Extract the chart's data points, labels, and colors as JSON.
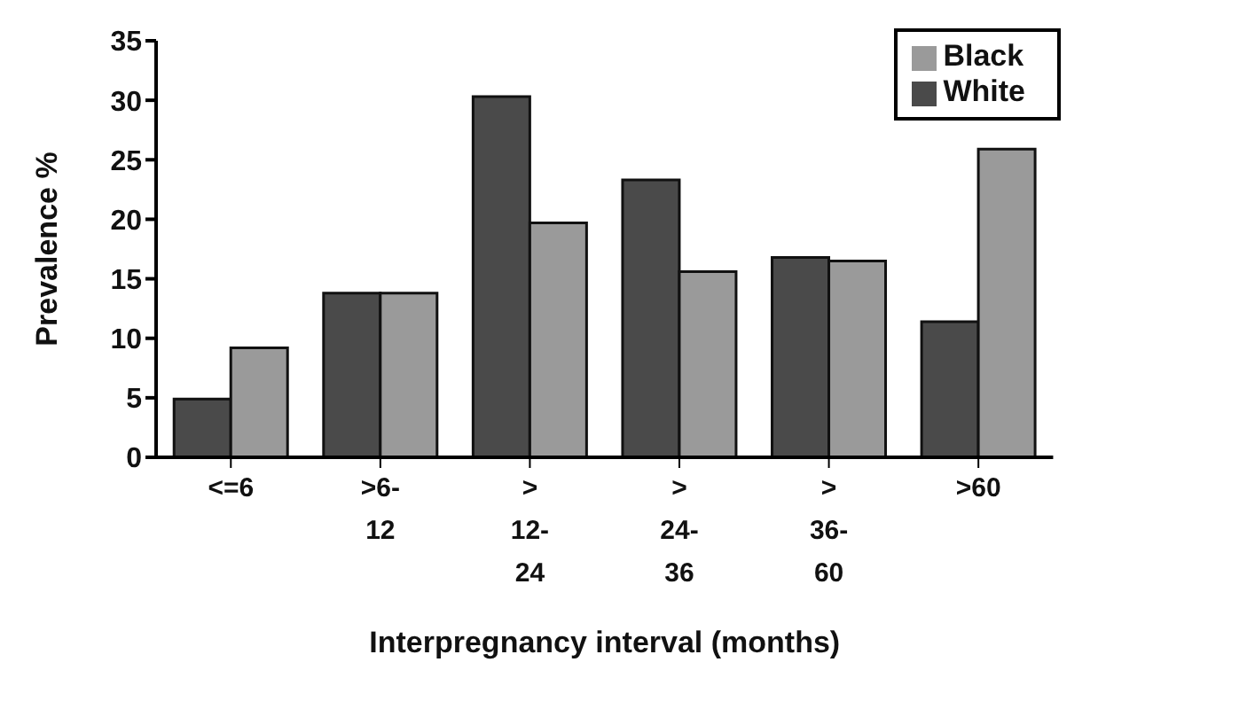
{
  "chart_data": {
    "type": "bar",
    "xlabel": "Interpregnancy interval (months)",
    "ylabel": "Prevalence %",
    "categories": [
      "<=6",
      ">6-\n12",
      ">\n12-\n24",
      ">\n24-\n36",
      ">\n36-\n60",
      ">60"
    ],
    "series": [
      {
        "name": "White",
        "color": "#4a4a4a",
        "values": [
          4.9,
          13.8,
          30.3,
          23.3,
          16.8,
          11.4
        ]
      },
      {
        "name": "Black",
        "color": "#9a9a9a",
        "values": [
          9.2,
          13.8,
          19.7,
          15.6,
          16.5,
          25.9
        ]
      }
    ],
    "ylim": [
      0,
      35
    ],
    "yticks": [
      0,
      5,
      10,
      15,
      20,
      25,
      30,
      35
    ],
    "grid": false,
    "legend": "top right"
  }
}
